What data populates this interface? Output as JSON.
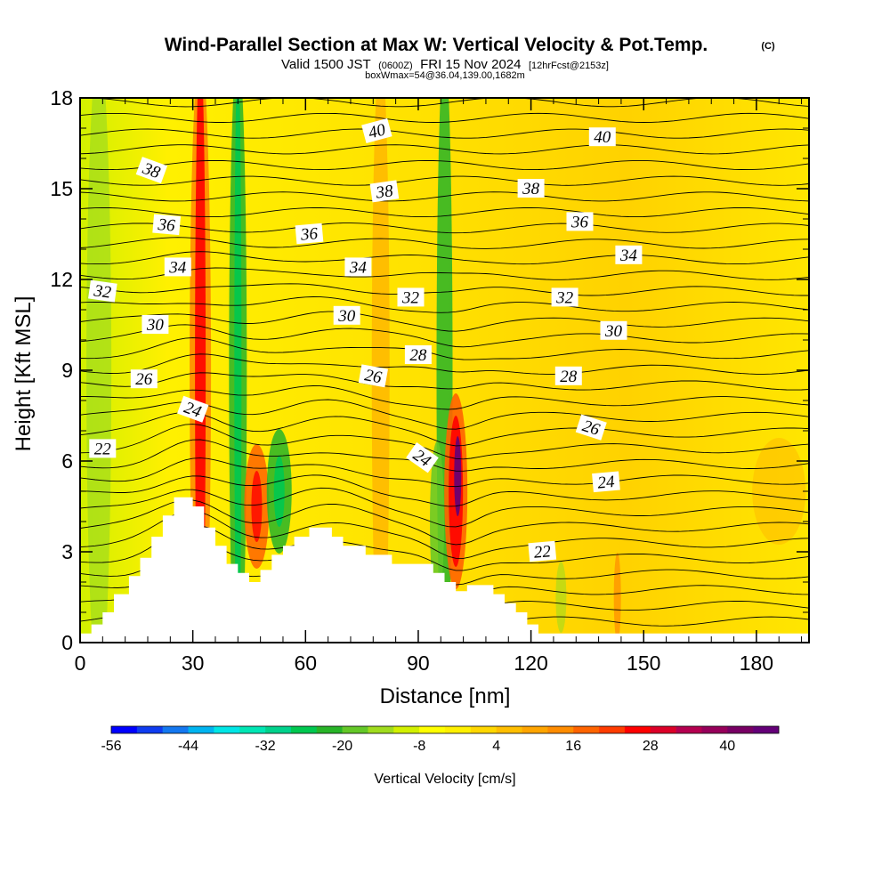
{
  "header": {
    "title": "Wind-Parallel Section at Max W: Vertical Velocity & Pot.Temp.",
    "copyright": "(C)",
    "valid_prefix": "Valid 1500 JST",
    "valid_utc": "(0600Z)",
    "valid_date": "FRI 15 Nov 2024",
    "forecast": "[12hrFcst@2153z]",
    "box_info": "boxWmax=54@36.04,139.00,1682m"
  },
  "chart_data": {
    "type": "heatmap",
    "xlabel": "Distance [nm]",
    "ylabel": "Height [Kft MSL]",
    "xlim": [
      0,
      194
    ],
    "ylim": [
      0,
      18
    ],
    "x_ticks": [
      0,
      30,
      60,
      90,
      120,
      150,
      180
    ],
    "y_ticks": [
      0,
      3,
      6,
      9,
      12,
      15,
      18
    ],
    "colorbar": {
      "label": "Vertical Velocity [cm/s]",
      "tick_labels": [
        "-56",
        "-44",
        "-32",
        "-20",
        "-8",
        "4",
        "16",
        "28",
        "40"
      ],
      "colors": [
        "#0000ff",
        "#0f3cf0",
        "#1478f0",
        "#00b4f0",
        "#00e6e6",
        "#00e6b4",
        "#00d28c",
        "#00c850",
        "#28b428",
        "#64c828",
        "#a0dc1e",
        "#d2f000",
        "#ffff00",
        "#fff000",
        "#ffd700",
        "#ffbe00",
        "#ffa500",
        "#ff8c00",
        "#ff6400",
        "#ff3c00",
        "#ff0000",
        "#dc0028",
        "#b40050",
        "#96005a",
        "#780064",
        "#640078"
      ]
    },
    "theta_contour_labels": [
      {
        "text": "40",
        "x": 79,
        "y": 16.9,
        "angle": -15
      },
      {
        "text": "40",
        "x": 139,
        "y": 16.7,
        "angle": 0
      },
      {
        "text": "38",
        "x": 19,
        "y": 15.6,
        "angle": 20
      },
      {
        "text": "38",
        "x": 81,
        "y": 14.9,
        "angle": -8
      },
      {
        "text": "38",
        "x": 120,
        "y": 15.0,
        "angle": 0
      },
      {
        "text": "36",
        "x": 23,
        "y": 13.8,
        "angle": 5
      },
      {
        "text": "36",
        "x": 61,
        "y": 13.5,
        "angle": -5
      },
      {
        "text": "36",
        "x": 133,
        "y": 13.9,
        "angle": 0
      },
      {
        "text": "34",
        "x": 26,
        "y": 12.4,
        "angle": 0
      },
      {
        "text": "34",
        "x": 74,
        "y": 12.4,
        "angle": 0
      },
      {
        "text": "34",
        "x": 146,
        "y": 12.8,
        "angle": 0
      },
      {
        "text": "32",
        "x": 6,
        "y": 11.6,
        "angle": 8
      },
      {
        "text": "32",
        "x": 88,
        "y": 11.4,
        "angle": 0
      },
      {
        "text": "32",
        "x": 129,
        "y": 11.4,
        "angle": 0
      },
      {
        "text": "30",
        "x": 20,
        "y": 10.5,
        "angle": 0
      },
      {
        "text": "30",
        "x": 71,
        "y": 10.8,
        "angle": 0
      },
      {
        "text": "30",
        "x": 142,
        "y": 10.3,
        "angle": 0
      },
      {
        "text": "28",
        "x": 90,
        "y": 9.5,
        "angle": 0
      },
      {
        "text": "28",
        "x": 130,
        "y": 8.8,
        "angle": 0
      },
      {
        "text": "26",
        "x": 17,
        "y": 8.7,
        "angle": 0
      },
      {
        "text": "26",
        "x": 78,
        "y": 8.8,
        "angle": 10
      },
      {
        "text": "26",
        "x": 136,
        "y": 7.1,
        "angle": 18
      },
      {
        "text": "24",
        "x": 30,
        "y": 7.7,
        "angle": 20
      },
      {
        "text": "24",
        "x": 91,
        "y": 6.1,
        "angle": 35
      },
      {
        "text": "24",
        "x": 140,
        "y": 5.3,
        "angle": -5
      },
      {
        "text": "22",
        "x": 6,
        "y": 6.4,
        "angle": 0
      },
      {
        "text": "22",
        "x": 123,
        "y": 3.0,
        "angle": -5
      }
    ],
    "terrain_profile_kft": [
      [
        0,
        0.3
      ],
      [
        3,
        0.3
      ],
      [
        3,
        0.6
      ],
      [
        6,
        0.6
      ],
      [
        6,
        1.0
      ],
      [
        9,
        1.0
      ],
      [
        9,
        1.6
      ],
      [
        13,
        1.6
      ],
      [
        13,
        2.2
      ],
      [
        16,
        2.2
      ],
      [
        16,
        2.8
      ],
      [
        19,
        2.8
      ],
      [
        19,
        3.5
      ],
      [
        22,
        3.5
      ],
      [
        22,
        4.2
      ],
      [
        25,
        4.2
      ],
      [
        25,
        4.8
      ],
      [
        30,
        4.8
      ],
      [
        30,
        4.5
      ],
      [
        33,
        4.5
      ],
      [
        33,
        3.8
      ],
      [
        36,
        3.8
      ],
      [
        36,
        3.2
      ],
      [
        39,
        3.2
      ],
      [
        39,
        2.6
      ],
      [
        42,
        2.6
      ],
      [
        42,
        2.3
      ],
      [
        45,
        2.3
      ],
      [
        45,
        2.0
      ],
      [
        48,
        2.0
      ],
      [
        48,
        2.4
      ],
      [
        51,
        2.4
      ],
      [
        51,
        2.9
      ],
      [
        54,
        2.9
      ],
      [
        54,
        3.2
      ],
      [
        57,
        3.2
      ],
      [
        57,
        3.5
      ],
      [
        61,
        3.5
      ],
      [
        61,
        3.8
      ],
      [
        67,
        3.8
      ],
      [
        67,
        3.5
      ],
      [
        70,
        3.5
      ],
      [
        70,
        3.2
      ],
      [
        76,
        3.2
      ],
      [
        76,
        2.9
      ],
      [
        83,
        2.9
      ],
      [
        83,
        2.6
      ],
      [
        94,
        2.6
      ],
      [
        94,
        2.3
      ],
      [
        97,
        2.3
      ],
      [
        97,
        2.0
      ],
      [
        100,
        2.0
      ],
      [
        100,
        1.7
      ],
      [
        103,
        1.7
      ],
      [
        103,
        1.9
      ],
      [
        110,
        1.9
      ],
      [
        110,
        1.6
      ],
      [
        113,
        1.6
      ],
      [
        113,
        1.3
      ],
      [
        116,
        1.3
      ],
      [
        116,
        1.0
      ],
      [
        119,
        1.0
      ],
      [
        119,
        0.6
      ],
      [
        122,
        0.6
      ],
      [
        122,
        0.3
      ],
      [
        194,
        0.3
      ]
    ],
    "updraft_bands": [
      {
        "x": 32,
        "sign": 1,
        "amp": 30
      },
      {
        "x": 41,
        "sign": -1,
        "amp": 16
      },
      {
        "x": 47,
        "sign": 1,
        "amp": 26
      },
      {
        "x": 53,
        "sign": -1,
        "amp": 18
      },
      {
        "x": 100,
        "sign": 1,
        "amp": 54
      },
      {
        "x": 96,
        "sign": -1,
        "amp": 18
      }
    ]
  }
}
